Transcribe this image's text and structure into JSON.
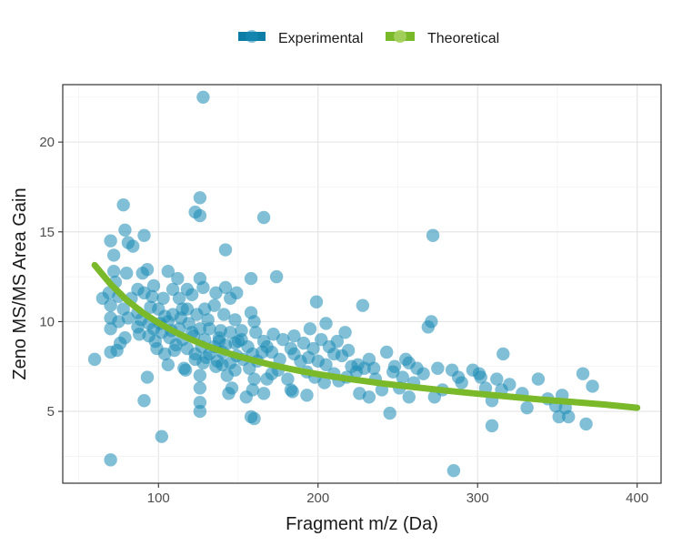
{
  "chart_data": {
    "type": "scatter",
    "title": "",
    "xlabel": "Fragment m/z (Da)",
    "ylabel": "Zeno MS/MS Area Gain",
    "xlim": [
      40,
      415
    ],
    "ylim": [
      1.0,
      23.2
    ],
    "xticks": [
      100,
      200,
      300,
      400
    ],
    "yticks": [
      5,
      10,
      15,
      20
    ],
    "grid": true,
    "legend": {
      "position": "top",
      "entries": [
        "Experimental",
        "Theoretical"
      ]
    },
    "colors": {
      "Experimental": "#1a8bb5",
      "Theoretical": "#7ab929"
    },
    "series": [
      {
        "name": "Experimental",
        "kind": "points",
        "points": [
          [
            128,
            22.5
          ],
          [
            78,
            16.5
          ],
          [
            126,
            16.9
          ],
          [
            123,
            16.1
          ],
          [
            126,
            15.9
          ],
          [
            166,
            15.8
          ],
          [
            79,
            15.1
          ],
          [
            272,
            14.8
          ],
          [
            70,
            14.5
          ],
          [
            81,
            14.4
          ],
          [
            84,
            14.2
          ],
          [
            91,
            14.8
          ],
          [
            72,
            13.7
          ],
          [
            142,
            14.0
          ],
          [
            72,
            12.8
          ],
          [
            80,
            12.7
          ],
          [
            93,
            12.9
          ],
          [
            90,
            12.7
          ],
          [
            106,
            12.8
          ],
          [
            112,
            12.4
          ],
          [
            126,
            12.4
          ],
          [
            158,
            12.4
          ],
          [
            174,
            12.5
          ],
          [
            73,
            12.2
          ],
          [
            87,
            11.8
          ],
          [
            97,
            12.0
          ],
          [
            109,
            11.8
          ],
          [
            118,
            11.8
          ],
          [
            128,
            11.9
          ],
          [
            142,
            11.9
          ],
          [
            149,
            11.6
          ],
          [
            65,
            11.3
          ],
          [
            69,
            11.6
          ],
          [
            75,
            11.4
          ],
          [
            83,
            11.3
          ],
          [
            91,
            11.6
          ],
          [
            96,
            11.4
          ],
          [
            103,
            11.3
          ],
          [
            113,
            11.3
          ],
          [
            121,
            11.5
          ],
          [
            136,
            11.6
          ],
          [
            145,
            11.3
          ],
          [
            199,
            11.1
          ],
          [
            228,
            10.9
          ],
          [
            70,
            10.9
          ],
          [
            78,
            10.7
          ],
          [
            87,
            10.5
          ],
          [
            95,
            10.8
          ],
          [
            100,
            10.7
          ],
          [
            109,
            10.4
          ],
          [
            118,
            10.7
          ],
          [
            124,
            10.4
          ],
          [
            129,
            10.7
          ],
          [
            135,
            10.9
          ],
          [
            141,
            10.4
          ],
          [
            158,
            10.5
          ],
          [
            70,
            10.2
          ],
          [
            75,
            10.0
          ],
          [
            81,
            10.2
          ],
          [
            89,
            10.1
          ],
          [
            94,
            9.9
          ],
          [
            101,
            9.9
          ],
          [
            106,
            10.0
          ],
          [
            114,
            10.2
          ],
          [
            119,
            9.9
          ],
          [
            131,
            10.1
          ],
          [
            148,
            10.1
          ],
          [
            160,
            10.0
          ],
          [
            205,
            9.9
          ],
          [
            271,
            10.0
          ],
          [
            70,
            9.6
          ],
          [
            87,
            9.7
          ],
          [
            97,
            9.6
          ],
          [
            102,
            9.4
          ],
          [
            108,
            9.5
          ],
          [
            113,
            9.6
          ],
          [
            121,
            9.4
          ],
          [
            126,
            9.6
          ],
          [
            132,
            9.6
          ],
          [
            139,
            9.5
          ],
          [
            145,
            9.4
          ],
          [
            152,
            9.5
          ],
          [
            161,
            9.4
          ],
          [
            172,
            9.3
          ],
          [
            185,
            9.2
          ],
          [
            195,
            9.6
          ],
          [
            217,
            9.4
          ],
          [
            269,
            9.7
          ],
          [
            79,
            9.1
          ],
          [
            94,
            9.2
          ],
          [
            107,
            9.1
          ],
          [
            115,
            9.0
          ],
          [
            122,
            9.2
          ],
          [
            129,
            9.0
          ],
          [
            138,
            8.9
          ],
          [
            150,
            8.9
          ],
          [
            166,
            8.9
          ],
          [
            178,
            9.0
          ],
          [
            191,
            8.8
          ],
          [
            202,
            9.0
          ],
          [
            212,
            8.9
          ],
          [
            76,
            8.8
          ],
          [
            98,
            8.9
          ],
          [
            111,
            8.7
          ],
          [
            118,
            8.5
          ],
          [
            127,
            8.6
          ],
          [
            135,
            8.6
          ],
          [
            142,
            8.7
          ],
          [
            156,
            8.6
          ],
          [
            168,
            8.6
          ],
          [
            183,
            8.5
          ],
          [
            197,
            8.5
          ],
          [
            207,
            8.6
          ],
          [
            219,
            8.4
          ],
          [
            70,
            8.3
          ],
          [
            104,
            8.2
          ],
          [
            110,
            8.4
          ],
          [
            123,
            8.2
          ],
          [
            132,
            8.2
          ],
          [
            140,
            8.3
          ],
          [
            149,
            8.1
          ],
          [
            159,
            8.2
          ],
          [
            171,
            8.3
          ],
          [
            185,
            8.2
          ],
          [
            194,
            8.0
          ],
          [
            215,
            8.1
          ],
          [
            232,
            7.9
          ],
          [
            243,
            8.3
          ],
          [
            255,
            7.9
          ],
          [
            316,
            8.2
          ],
          [
            123,
            7.9
          ],
          [
            130,
            8.0
          ],
          [
            137,
            7.8
          ],
          [
            145,
            7.7
          ],
          [
            153,
            7.9
          ],
          [
            162,
            7.8
          ],
          [
            176,
            7.9
          ],
          [
            189,
            7.8
          ],
          [
            205,
            7.6
          ],
          [
            225,
            7.6
          ],
          [
            235,
            7.4
          ],
          [
            257,
            7.7
          ],
          [
            275,
            7.4
          ],
          [
            297,
            7.3
          ],
          [
            106,
            7.6
          ],
          [
            116,
            7.4
          ],
          [
            128,
            7.7
          ],
          [
            136,
            7.5
          ],
          [
            148,
            7.3
          ],
          [
            157,
            7.4
          ],
          [
            175,
            7.3
          ],
          [
            193,
            7.2
          ],
          [
            210,
            7.1
          ],
          [
            229,
            7.4
          ],
          [
            247,
            7.2
          ],
          [
            262,
            7.4
          ],
          [
            284,
            7.3
          ],
          [
            301,
            7.1
          ],
          [
            366,
            7.1
          ],
          [
            117,
            7.3
          ],
          [
            126,
            7.0
          ],
          [
            143,
            7.0
          ],
          [
            160,
            6.8
          ],
          [
            168,
            6.8
          ],
          [
            181,
            6.8
          ],
          [
            198,
            6.9
          ],
          [
            218,
            6.9
          ],
          [
            236,
            6.8
          ],
          [
            253,
            6.9
          ],
          [
            266,
            7.1
          ],
          [
            288,
            6.9
          ],
          [
            312,
            6.8
          ],
          [
            338,
            6.8
          ],
          [
            146,
            6.3
          ],
          [
            159,
            6.2
          ],
          [
            183,
            6.2
          ],
          [
            204,
            6.6
          ],
          [
            213,
            6.7
          ],
          [
            240,
            6.2
          ],
          [
            251,
            6.3
          ],
          [
            278,
            6.2
          ],
          [
            305,
            6.3
          ],
          [
            328,
            6.0
          ],
          [
            315,
            6.2
          ],
          [
            372,
            6.4
          ],
          [
            126,
            6.3
          ],
          [
            144,
            6.0
          ],
          [
            155,
            5.8
          ],
          [
            166,
            6.0
          ],
          [
            184,
            6.1
          ],
          [
            193,
            5.9
          ],
          [
            226,
            6.0
          ],
          [
            232,
            5.8
          ],
          [
            257,
            5.8
          ],
          [
            273,
            5.8
          ],
          [
            309,
            5.6
          ],
          [
            344,
            5.7
          ],
          [
            353,
            5.9
          ],
          [
            91,
            5.6
          ],
          [
            126,
            5.5
          ],
          [
            331,
            5.2
          ],
          [
            349,
            5.3
          ],
          [
            355,
            5.2
          ],
          [
            126,
            5.0
          ],
          [
            245,
            4.9
          ],
          [
            351,
            4.7
          ],
          [
            357,
            4.7
          ],
          [
            158,
            4.7
          ],
          [
            160,
            4.6
          ],
          [
            368,
            4.3
          ],
          [
            309,
            4.2
          ],
          [
            102,
            3.6
          ],
          [
            70,
            2.3
          ],
          [
            285,
            1.7
          ],
          [
            60,
            7.9
          ],
          [
            93,
            6.9
          ],
          [
            74,
            8.4
          ],
          [
            148,
            8.8
          ],
          [
            165,
            8.3
          ],
          [
            210,
            8.2
          ],
          [
            224,
            7.2
          ],
          [
            260,
            6.6
          ],
          [
            290,
            6.6
          ],
          [
            138,
            9.1
          ],
          [
            152,
            9.0
          ],
          [
            115,
            10.7
          ],
          [
            99,
            8.5
          ],
          [
            88,
            9.3
          ],
          [
            104,
            10.3
          ],
          [
            140,
            7.6
          ],
          [
            171,
            7.1
          ],
          [
            200,
            7.8
          ],
          [
            221,
            7.5
          ],
          [
            248,
            7.5
          ],
          [
            302,
            6.9
          ],
          [
            320,
            6.5
          ]
        ]
      },
      {
        "name": "Theoretical",
        "kind": "line",
        "x": [
          60,
          70,
          80,
          90,
          100,
          110,
          120,
          130,
          140,
          150,
          160,
          170,
          180,
          190,
          200,
          220,
          240,
          260,
          280,
          300,
          320,
          340,
          360,
          380,
          400
        ],
        "y": [
          13.15,
          12.09,
          11.21,
          10.51,
          9.93,
          9.44,
          9.02,
          8.66,
          8.34,
          8.07,
          7.83,
          7.61,
          7.41,
          7.23,
          7.07,
          6.8,
          6.56,
          6.35,
          6.16,
          5.98,
          5.82,
          5.66,
          5.52,
          5.38,
          5.2
        ]
      }
    ]
  }
}
